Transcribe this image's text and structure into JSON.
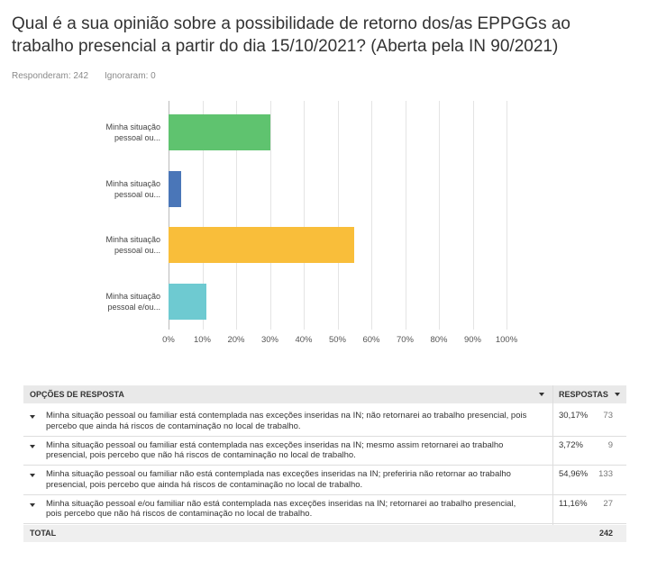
{
  "header": {
    "title": "Qual é a sua opinião sobre a possibilidade de retorno dos/as EPPGGs ao trabalho presencial a partir do dia 15/10/2021? (Aberta pela IN 90/2021)",
    "answered": "Responderam: 242",
    "skipped": "Ignoraram: 0"
  },
  "chart_data": {
    "type": "bar",
    "orientation": "horizontal",
    "categories": [
      "Minha situação pessoal ou...",
      "Minha situação pessoal ou...",
      "Minha situação pessoal ou...",
      "Minha situação pessoal e/ou..."
    ],
    "values": [
      30.17,
      3.72,
      54.96,
      11.16
    ],
    "colors": [
      "#5fc36f",
      "#4a76b8",
      "#f9be3a",
      "#6ecad1"
    ],
    "xlim": [
      0,
      100
    ],
    "xticks": [
      {
        "value": 0,
        "label": "0%"
      },
      {
        "value": 10,
        "label": "10%"
      },
      {
        "value": 20,
        "label": "20%"
      },
      {
        "value": 30,
        "label": "30%"
      },
      {
        "value": 40,
        "label": "40%"
      },
      {
        "value": 50,
        "label": "50%"
      },
      {
        "value": 60,
        "label": "60%"
      },
      {
        "value": 70,
        "label": "70%"
      },
      {
        "value": 80,
        "label": "80%"
      },
      {
        "value": 90,
        "label": "90%"
      },
      {
        "value": 100,
        "label": "100%"
      }
    ],
    "grid": true
  },
  "table": {
    "columns": [
      "OPÇÕES DE RESPOSTA",
      "RESPOSTAS"
    ],
    "rows": [
      [
        "Minha situação pessoal ou familiar está contemplada nas exceções inseridas na IN; não retornarei ao trabalho presencial, pois percebo que ainda há riscos de contaminação no local de trabalho.",
        "30,17%",
        73
      ],
      [
        "Minha situação pessoal ou familiar está contemplada nas exceções inseridas na IN; mesmo assim retornarei ao trabalho presencial, pois percebo que não há riscos de contaminação no local de trabalho.",
        "3,72%",
        9
      ],
      [
        "Minha situação pessoal ou familiar não está contemplada nas exceções inseridas na IN; preferiria não retornar ao trabalho presencial, pois percebo que ainda há riscos de contaminação no local de trabalho.",
        "54,96%",
        133
      ],
      [
        "Minha situação pessoal e/ou familiar não está contemplada nas exceções inseridas na IN; retornarei ao trabalho presencial, pois percebo que não há riscos de contaminação no local de trabalho.",
        "11,16%",
        27
      ]
    ],
    "total_label": "TOTAL",
    "total": 242
  }
}
